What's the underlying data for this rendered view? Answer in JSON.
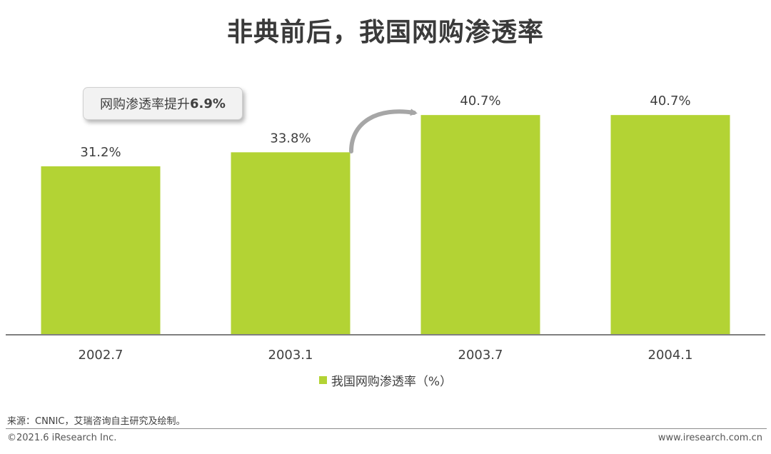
{
  "title": "非典前后，我国网购渗透率",
  "callout": {
    "text_prefix": "网购渗透率提升",
    "text_value": "6.9%"
  },
  "source": "来源：CNNIC，艾瑞咨询自主研究及绘制。",
  "copyright": "©2021.6 iResearch Inc.",
  "website": "www.iresearch.com.cn",
  "colors": {
    "bar": "#b3d334",
    "axis": "#7f7f7f",
    "arrow": "#a6a6a6"
  },
  "chart_data": {
    "type": "bar",
    "categories": [
      "2002.7",
      "2003.1",
      "2003.7",
      "2004.1"
    ],
    "series": [
      {
        "name": "我国网购渗透率（%）",
        "values": [
          31.2,
          33.8,
          40.7,
          40.7
        ]
      }
    ],
    "data_labels": [
      "31.2%",
      "33.8%",
      "40.7%",
      "40.7%"
    ],
    "ylim": [
      0,
      50
    ],
    "grid": false,
    "legend": "bottom-center"
  }
}
